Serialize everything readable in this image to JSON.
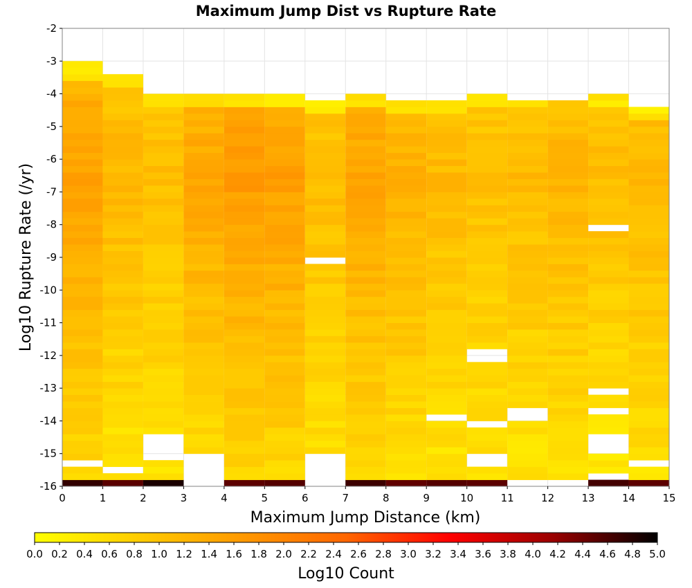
{
  "chart_data": {
    "type": "heatmap",
    "title": "Maximum Jump Dist vs Rupture Rate",
    "xlabel": "Maximum Jump Distance (km)",
    "ylabel": "Log10 Rupture Rate (/yr)",
    "xlim": [
      0,
      15
    ],
    "ylim": [
      -16,
      -2
    ],
    "x_ticks": [
      "0",
      "1",
      "2",
      "3",
      "4",
      "5",
      "6",
      "7",
      "8",
      "9",
      "10",
      "11",
      "12",
      "13",
      "14",
      "15"
    ],
    "y_ticks": [
      "-2",
      "-3",
      "-4",
      "-5",
      "-6",
      "-7",
      "-8",
      "-9",
      "-10",
      "-11",
      "-12",
      "-13",
      "-14",
      "-15",
      "-16"
    ],
    "x_bin_width": 1,
    "y_bin_height": 0.2,
    "grid": true,
    "colorbar": {
      "label": "Log10 Count",
      "min": 0.0,
      "max": 5.0,
      "ticks": [
        "0.0",
        "0.2",
        "0.4",
        "0.6",
        "0.8",
        "1.0",
        "1.2",
        "1.4",
        "1.6",
        "1.8",
        "2.0",
        "2.2",
        "2.4",
        "2.6",
        "2.8",
        "3.0",
        "3.2",
        "3.4",
        "3.6",
        "3.8",
        "4.0",
        "4.2",
        "4.4",
        "4.6",
        "4.8",
        "5.0"
      ],
      "colors": [
        "#ffff00",
        "#ffcc00",
        "#ff9900",
        "#ff6600",
        "#ff0000",
        "#990000",
        "#000000"
      ]
    },
    "columns": [
      {
        "x": 0,
        "top": -3.0,
        "base": 1.05,
        "max": 1.55,
        "holes": [
          -15.3
        ]
      },
      {
        "x": 1,
        "top": -3.3,
        "base": 0.75,
        "max": 1.2,
        "holes": [
          -15.5
        ]
      },
      {
        "x": 2,
        "top": -3.9,
        "base": 0.8,
        "max": 1.05,
        "holes": [
          -14.5,
          -14.7,
          -14.9,
          -15.1
        ]
      },
      {
        "x": 3,
        "top": -3.9,
        "base": 0.95,
        "max": 1.45,
        "holes": [
          -15.1,
          -15.3,
          -15.5,
          -15.7,
          -15.9
        ]
      },
      {
        "x": 4,
        "top": -3.9,
        "base": 1.15,
        "max": 1.65,
        "holes": []
      },
      {
        "x": 5,
        "top": -3.9,
        "base": 1.1,
        "max": 1.6,
        "holes": []
      },
      {
        "x": 6,
        "top": -4.1,
        "base": 0.85,
        "max": 1.1,
        "holes": [
          -9.1,
          -15.1,
          -15.3,
          -15.5,
          -15.7,
          -15.9
        ]
      },
      {
        "x": 7,
        "top": -3.9,
        "base": 1.0,
        "max": 1.5,
        "holes": []
      },
      {
        "x": 8,
        "top": -4.1,
        "base": 0.95,
        "max": 1.3,
        "holes": []
      },
      {
        "x": 9,
        "top": -4.1,
        "base": 0.75,
        "max": 1.15,
        "holes": [
          -13.9
        ]
      },
      {
        "x": 10,
        "top": -3.9,
        "base": 0.75,
        "max": 1.05,
        "holes": [
          -12.0,
          -14.1,
          -15.1,
          -15.3
        ]
      },
      {
        "x": 11,
        "top": -3.9,
        "base": 0.75,
        "max": 1.15,
        "holes": [
          -4.1,
          -13.7,
          -13.9,
          -15.9
        ]
      },
      {
        "x": 12,
        "top": -3.7,
        "base": 0.85,
        "max": 1.25,
        "holes": [
          -3.9,
          -4.1,
          -15.9
        ]
      },
      {
        "x": 13,
        "top": -3.9,
        "base": 0.7,
        "max": 1.1,
        "holes": [
          -8.1,
          -13.1,
          -13.7,
          -14.5,
          -14.7,
          -14.9,
          -15.7
        ]
      },
      {
        "x": 14,
        "top": -4.3,
        "base": 0.85,
        "max": 1.2,
        "holes": [
          -15.3
        ]
      }
    ],
    "bottom_row": {
      "y": -16.0,
      "value_range": [
        4.4,
        4.9
      ],
      "note": ""
    }
  }
}
